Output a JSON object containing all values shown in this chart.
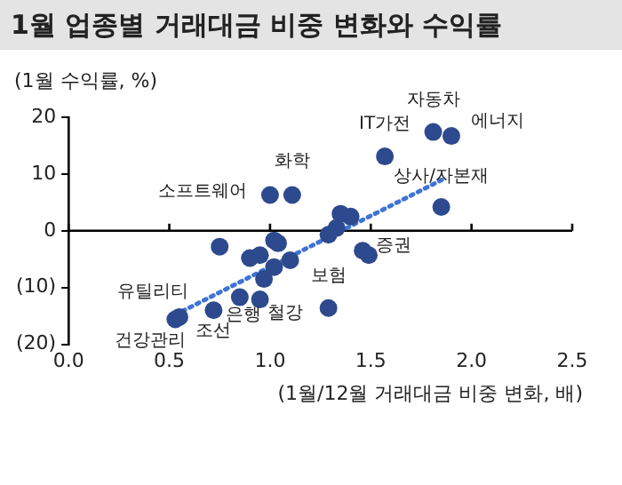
{
  "chart_data": {
    "type": "scatter",
    "title": "1월 업종별 거래대금 비중 변화와 수익률",
    "ylabel": "(1월 수익률, %)",
    "xlabel": "(1월/12월 거래대금 비중 변화, 배)",
    "xlim": [
      0,
      2.5
    ],
    "xticks": [
      {
        "value": 0,
        "label": "0.0"
      },
      {
        "value": 0.5,
        "label": "0.5"
      },
      {
        "value": 1,
        "label": "1.0"
      },
      {
        "value": 1.5,
        "label": "1.5"
      },
      {
        "value": 2,
        "label": "2.0"
      },
      {
        "value": 2.5,
        "label": "2.5"
      }
    ],
    "ylim": [
      -20,
      20
    ],
    "yticks": [
      {
        "value": -20,
        "label": "(20)"
      },
      {
        "value": -10,
        "label": "(10)"
      },
      0,
      10,
      20
    ],
    "grid": false,
    "marker": "circle",
    "series": [
      {
        "type": "scatter",
        "color": "#2e4a8e",
        "x": [
          1.81,
          1.9,
          1.57,
          1.85,
          1.0,
          1.11,
          1.35,
          1.4,
          1.33,
          1.29,
          0.75,
          1.02,
          1.04,
          1.46,
          1.49,
          0.9,
          0.95,
          1.1,
          1.02,
          0.97,
          1.29,
          0.85,
          0.95,
          0.72,
          0.53,
          0.55
        ],
        "values": [
          17.4,
          16.7,
          13.1,
          4.2,
          6.3,
          6.3,
          3.0,
          2.5,
          0.5,
          -0.7,
          -2.8,
          -1.7,
          -2.2,
          -3.5,
          -4.3,
          -4.8,
          -4.3,
          -5.2,
          -6.4,
          -8.5,
          -13.6,
          -11.7,
          -12.1,
          -14.0,
          -15.6,
          -15.2
        ]
      },
      {
        "type": "line",
        "color": "#3f74d6",
        "line_style": "dotted",
        "marker": "none",
        "x": [
          0.53,
          1.86
        ],
        "values": [
          -14.8,
          9.1
        ]
      }
    ],
    "ref_lines": [
      {
        "axis": "y",
        "value": 0,
        "color": "#000000"
      }
    ],
    "annotations": [
      {
        "text": "자동차",
        "x": 1.81,
        "y": 17.4
      },
      {
        "text": "에너지",
        "x": 1.9,
        "y": 16.7
      },
      {
        "text": "IT가전",
        "x": 1.57,
        "y": 13.1
      },
      {
        "text": "상사/자본재",
        "x": 1.85,
        "y": 4.2
      },
      {
        "text": "소프트웨어",
        "x": 1.0,
        "y": 6.3
      },
      {
        "text": "화학",
        "x": 1.11,
        "y": 6.3
      },
      {
        "text": "증권",
        "x": 1.49,
        "y": -4.3
      },
      {
        "text": "보험",
        "x": 1.29,
        "y": -13.6
      },
      {
        "text": "은행",
        "x": 0.85,
        "y": -11.7
      },
      {
        "text": "철강",
        "x": 0.95,
        "y": -12.1
      },
      {
        "text": "조선",
        "x": 0.72,
        "y": -14.0
      },
      {
        "text": "건강관리",
        "x": 0.53,
        "y": -15.6
      },
      {
        "text": "유틸리티",
        "x": 0.55,
        "y": -15.2
      }
    ]
  }
}
